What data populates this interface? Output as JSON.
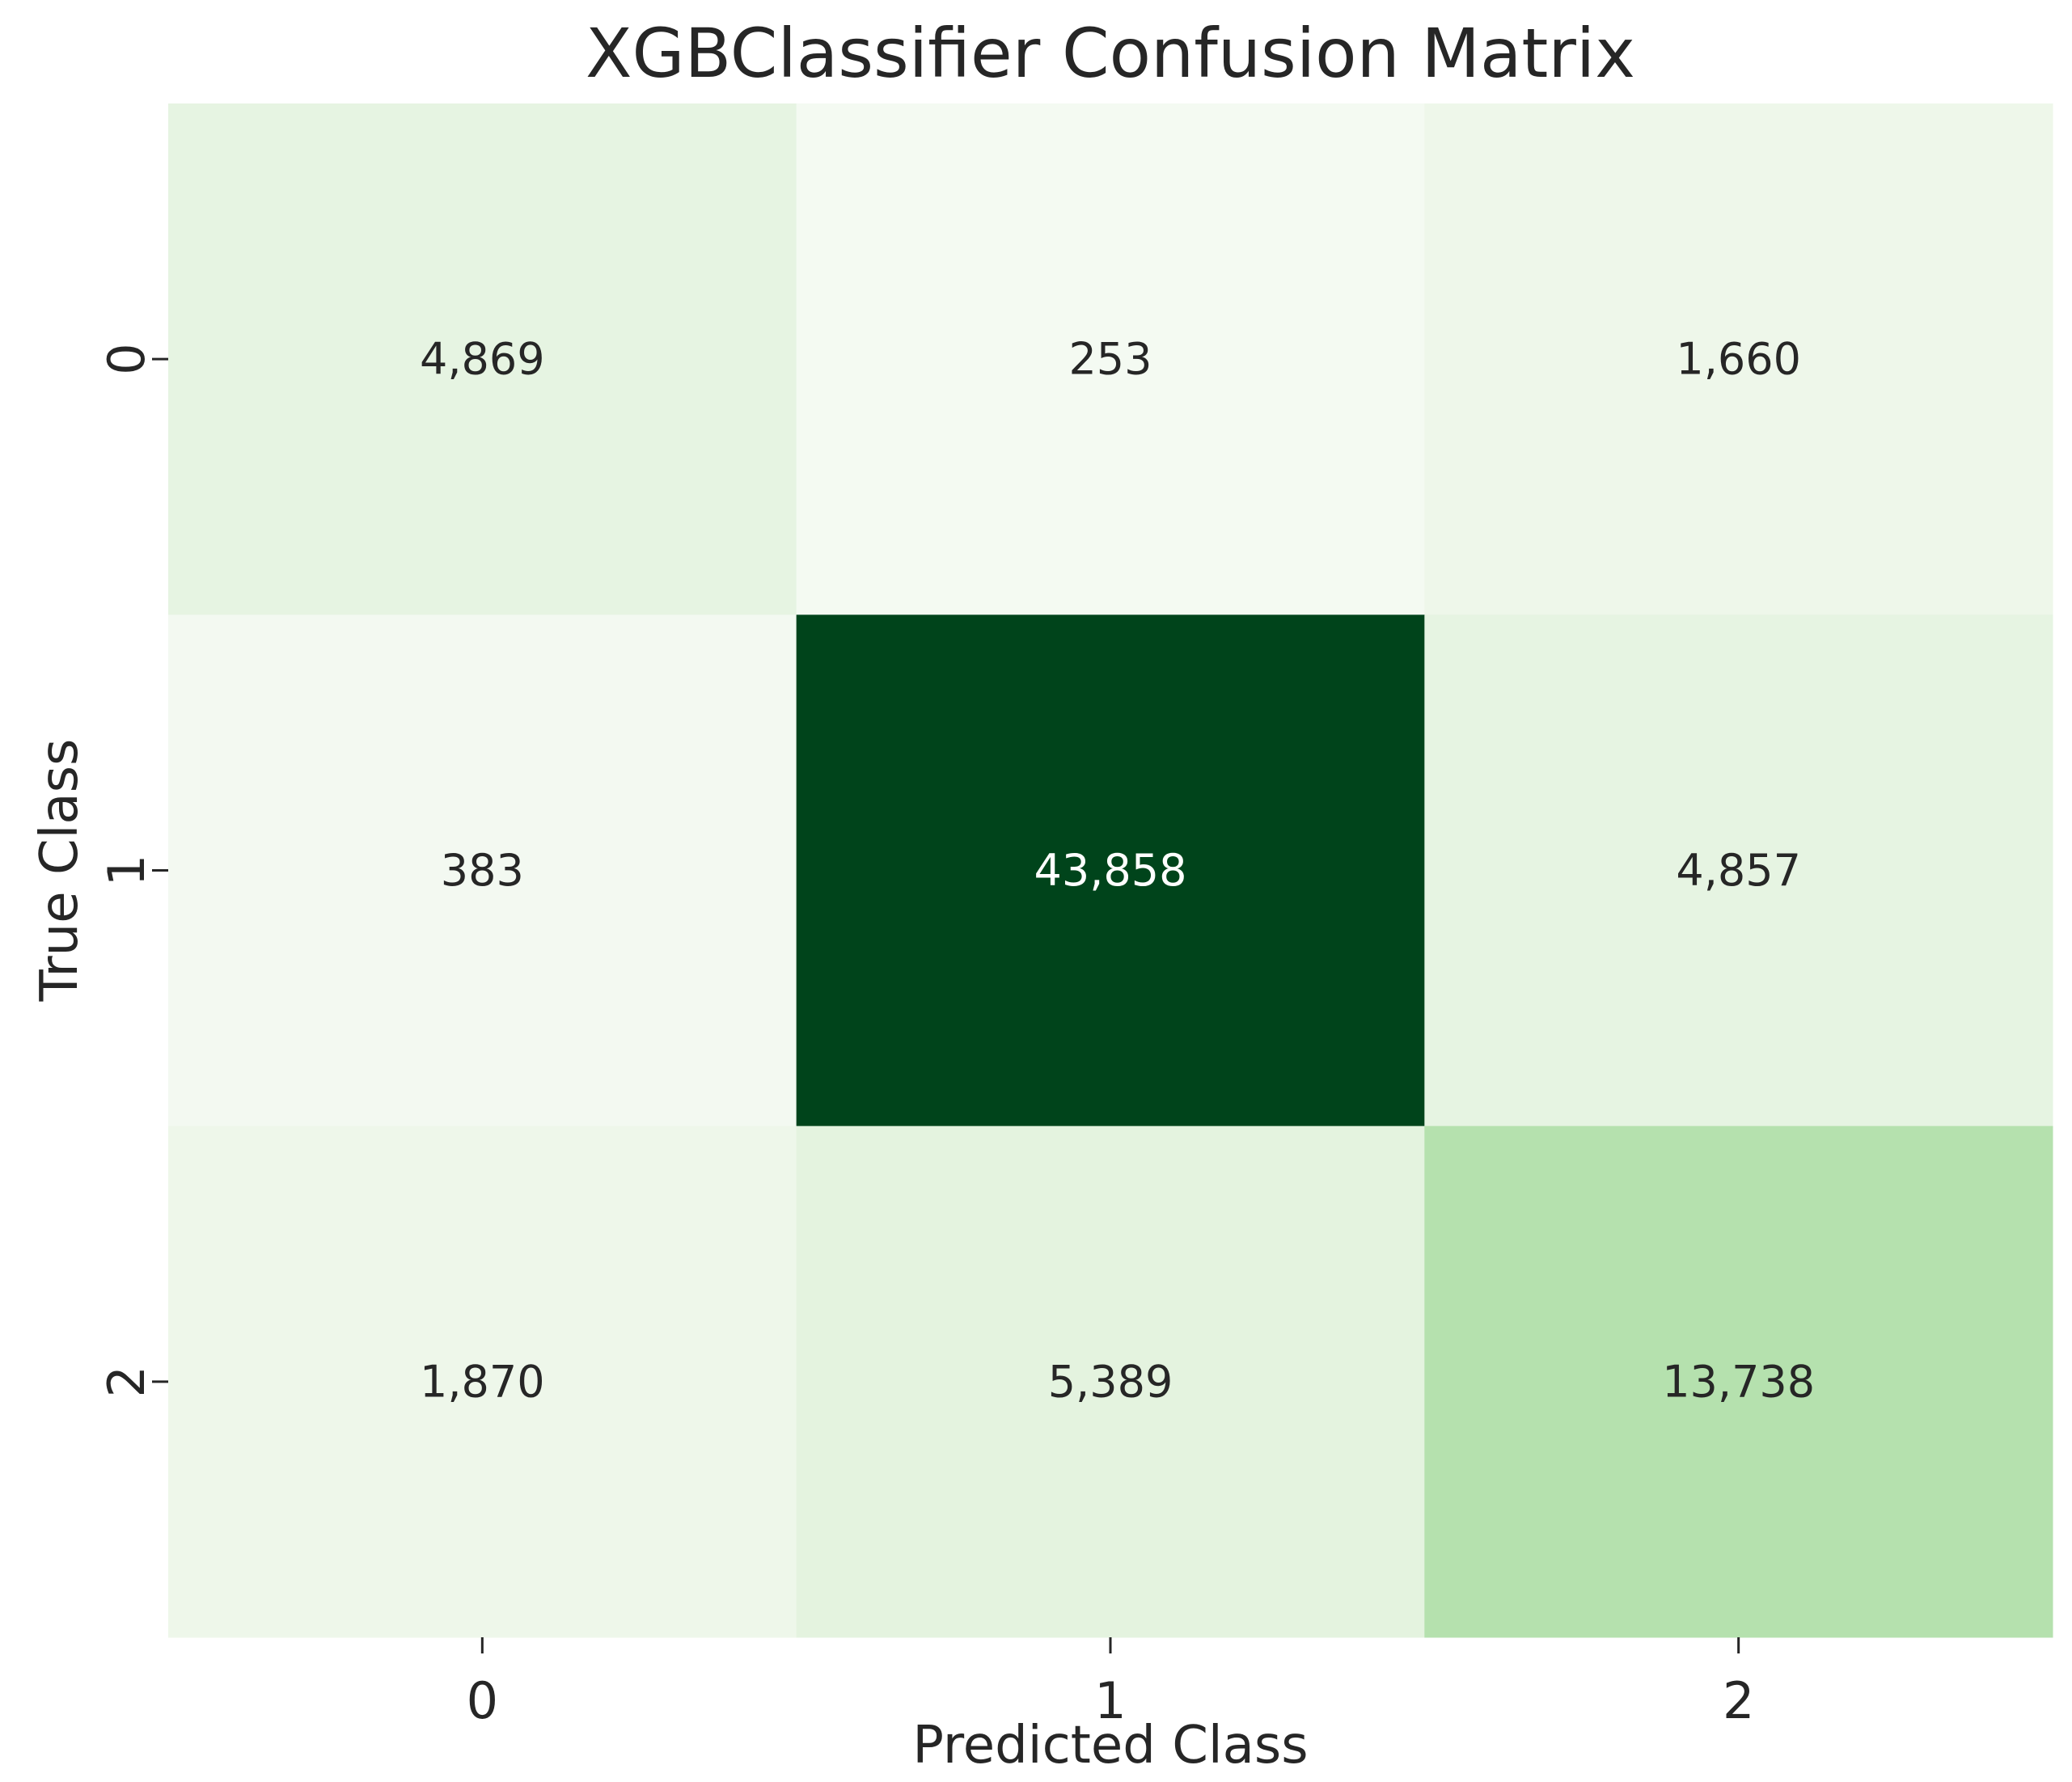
{
  "chart_data": {
    "type": "heatmap",
    "title": "XGBClassifier Confusion Matrix",
    "xlabel": "Predicted Class",
    "ylabel": "True Class",
    "x_categories": [
      "0",
      "1",
      "2"
    ],
    "y_categories": [
      "0",
      "1",
      "2"
    ],
    "values": [
      [
        4869,
        253,
        1660
      ],
      [
        383,
        43858,
        4857
      ],
      [
        1870,
        5389,
        13738
      ]
    ],
    "value_labels": [
      [
        "4,869",
        "253",
        "1,660"
      ],
      [
        "383",
        "43,858",
        "4,857"
      ],
      [
        "1,870",
        "5,389",
        "13,738"
      ]
    ],
    "colormap": "Greens",
    "colorbar": false,
    "grid": false,
    "colors": {
      "cells": [
        [
          "#e6f4e2",
          "#f4faf2",
          "#eef7ea"
        ],
        [
          "#f3f9f1",
          "#00441b",
          "#e6f4e2"
        ],
        [
          "#eef7ea",
          "#e4f3df",
          "#b5e1ae"
        ]
      ],
      "label_dark": "#262626",
      "label_light": "#ffffff"
    }
  }
}
